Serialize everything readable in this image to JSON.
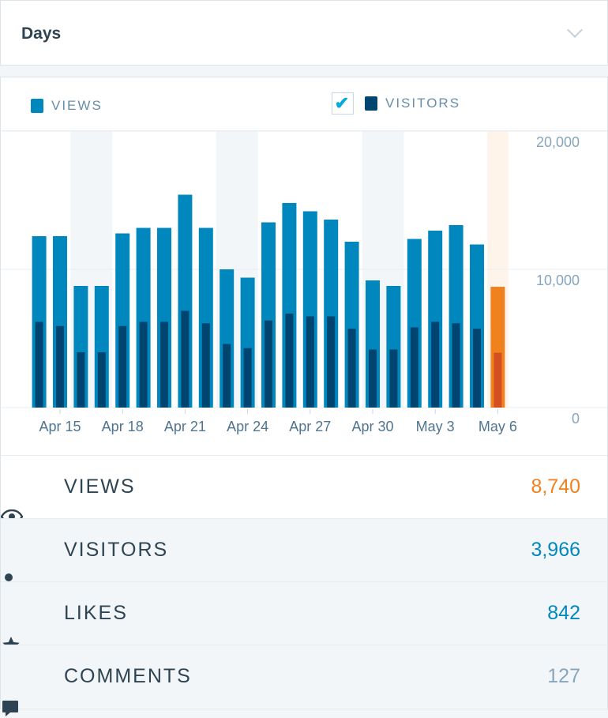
{
  "header": {
    "title": "Days"
  },
  "legend": {
    "views": "VIEWS",
    "visitors": "VISITORS",
    "visitors_checked": true
  },
  "colors": {
    "views": "#0087be",
    "visitors": "#00456f",
    "selected_views": "#f0821e",
    "selected_visitors": "#d54e21",
    "weekend": "#f3f6f8",
    "selected_bg": "#fef4ea"
  },
  "chart_data": {
    "type": "bar",
    "categories": [
      "Apr 14",
      "Apr 15",
      "Apr 16",
      "Apr 17",
      "Apr 18",
      "Apr 19",
      "Apr 20",
      "Apr 21",
      "Apr 22",
      "Apr 23",
      "Apr 24",
      "Apr 25",
      "Apr 26",
      "Apr 27",
      "Apr 28",
      "Apr 29",
      "Apr 30",
      "May 1",
      "May 2",
      "May 3",
      "May 4",
      "May 5",
      "May 6"
    ],
    "series": [
      {
        "name": "VIEWS",
        "values": [
          12400,
          12400,
          8800,
          8800,
          12600,
          13000,
          13000,
          15400,
          13000,
          10000,
          9400,
          13400,
          14800,
          14200,
          13600,
          12000,
          9200,
          8800,
          12200,
          12800,
          13200,
          11800,
          8740
        ]
      },
      {
        "name": "VISITORS",
        "values": [
          6200,
          5900,
          4000,
          4000,
          5900,
          6200,
          6200,
          7000,
          6100,
          4600,
          4300,
          6300,
          6800,
          6600,
          6600,
          5700,
          4200,
          4200,
          5800,
          6200,
          6100,
          5700,
          3966
        ]
      }
    ],
    "x_tick_labels": [
      "Apr 15",
      "Apr 18",
      "Apr 21",
      "Apr 24",
      "Apr 27",
      "Apr 30",
      "May 3",
      "May 6"
    ],
    "y_tick_labels": [
      "20,000",
      "10,000",
      "0"
    ],
    "ylim": [
      0,
      20000
    ],
    "weekend_categories": [
      "Apr 16",
      "Apr 17",
      "Apr 23",
      "Apr 24",
      "Apr 30",
      "May 1"
    ],
    "selected": "May 6",
    "grid": true
  },
  "stats": [
    {
      "icon": "eye-icon",
      "label": "VIEWS",
      "value": "8,740",
      "color": "#f0821e"
    },
    {
      "icon": "person-icon",
      "label": "VISITORS",
      "value": "3,966",
      "color": "#0087be"
    },
    {
      "icon": "star-icon",
      "label": "LIKES",
      "value": "842",
      "color": "#0087be"
    },
    {
      "icon": "comment-icon",
      "label": "COMMENTS",
      "value": "127",
      "color": "#87a6bc"
    }
  ]
}
